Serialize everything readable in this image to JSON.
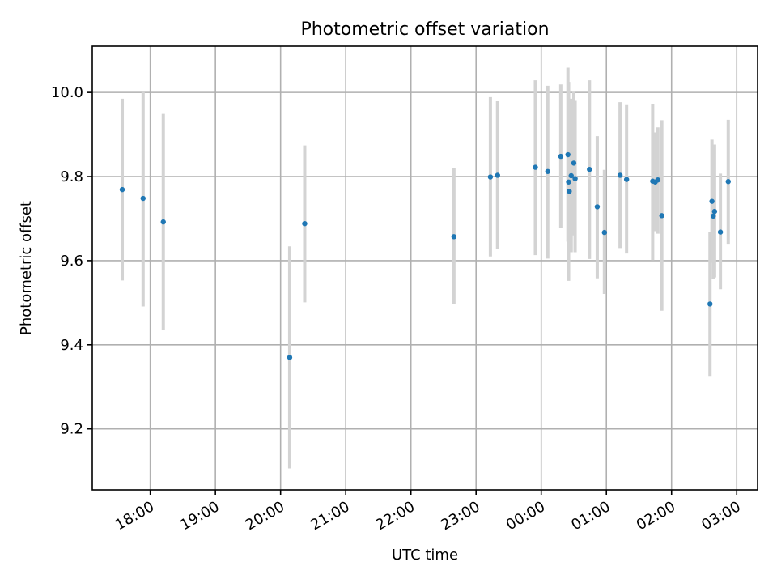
{
  "chart_data": {
    "type": "scatter",
    "title": "Photometric offset variation",
    "xlabel": "UTC time",
    "ylabel": "Photometric offset",
    "grid": true,
    "x_unit": "hours since 17:00 UTC",
    "xlim": [
      0.11,
      10.32
    ],
    "ylim": [
      9.055,
      10.11
    ],
    "x_ticks": [
      {
        "value": 1,
        "label": "18:00"
      },
      {
        "value": 2,
        "label": "19:00"
      },
      {
        "value": 3,
        "label": "20:00"
      },
      {
        "value": 4,
        "label": "21:00"
      },
      {
        "value": 5,
        "label": "22:00"
      },
      {
        "value": 6,
        "label": "23:00"
      },
      {
        "value": 7,
        "label": "00:00"
      },
      {
        "value": 8,
        "label": "01:00"
      },
      {
        "value": 9,
        "label": "02:00"
      },
      {
        "value": 10,
        "label": "03:00"
      }
    ],
    "y_ticks": [
      {
        "value": 9.2,
        "label": "9.2"
      },
      {
        "value": 9.4,
        "label": "9.4"
      },
      {
        "value": 9.6,
        "label": "9.6"
      },
      {
        "value": 9.8,
        "label": "9.8"
      },
      {
        "value": 10.0,
        "label": "10.0"
      }
    ],
    "series": [
      {
        "name": "photometric offset",
        "marker_color": "#1f77b4",
        "errorbar_color": "#d3d3d3",
        "points": [
          {
            "x": 0.57,
            "y": 9.769,
            "lo": 9.553,
            "hi": 9.985
          },
          {
            "x": 0.89,
            "y": 9.748,
            "lo": 9.491,
            "hi": 10.004
          },
          {
            "x": 1.2,
            "y": 9.692,
            "lo": 9.436,
            "hi": 9.949
          },
          {
            "x": 3.14,
            "y": 9.37,
            "lo": 9.106,
            "hi": 9.634
          },
          {
            "x": 3.37,
            "y": 9.688,
            "lo": 9.501,
            "hi": 9.874
          },
          {
            "x": 5.66,
            "y": 9.657,
            "lo": 9.497,
            "hi": 9.82
          },
          {
            "x": 6.22,
            "y": 9.799,
            "lo": 9.61,
            "hi": 9.989
          },
          {
            "x": 6.33,
            "y": 9.803,
            "lo": 9.628,
            "hi": 9.979
          },
          {
            "x": 6.91,
            "y": 9.822,
            "lo": 9.613,
            "hi": 10.029
          },
          {
            "x": 7.1,
            "y": 9.812,
            "lo": 9.605,
            "hi": 10.016
          },
          {
            "x": 7.3,
            "y": 9.848,
            "lo": 9.678,
            "hi": 10.019
          },
          {
            "x": 7.41,
            "y": 9.852,
            "lo": 9.645,
            "hi": 10.059
          },
          {
            "x": 7.42,
            "y": 9.787,
            "lo": 9.552,
            "hi": 10.025
          },
          {
            "x": 7.43,
            "y": 9.765,
            "lo": 9.65,
            "hi": 9.88
          },
          {
            "x": 7.46,
            "y": 9.802,
            "lo": 9.62,
            "hi": 9.985
          },
          {
            "x": 7.5,
            "y": 9.832,
            "lo": 9.66,
            "hi": 10.001
          },
          {
            "x": 7.52,
            "y": 9.795,
            "lo": 9.62,
            "hi": 9.98
          },
          {
            "x": 7.74,
            "y": 9.817,
            "lo": 9.604,
            "hi": 10.029
          },
          {
            "x": 7.86,
            "y": 9.728,
            "lo": 9.558,
            "hi": 9.896
          },
          {
            "x": 7.97,
            "y": 9.667,
            "lo": 9.521,
            "hi": 9.816
          },
          {
            "x": 8.21,
            "y": 9.803,
            "lo": 9.63,
            "hi": 9.977
          },
          {
            "x": 8.31,
            "y": 9.793,
            "lo": 9.617,
            "hi": 9.97
          },
          {
            "x": 8.71,
            "y": 9.789,
            "lo": 9.601,
            "hi": 9.972
          },
          {
            "x": 8.75,
            "y": 9.787,
            "lo": 9.67,
            "hi": 9.905
          },
          {
            "x": 8.79,
            "y": 9.792,
            "lo": 9.664,
            "hi": 9.917
          },
          {
            "x": 8.85,
            "y": 9.707,
            "lo": 9.481,
            "hi": 9.934
          },
          {
            "x": 9.59,
            "y": 9.497,
            "lo": 9.326,
            "hi": 9.669
          },
          {
            "x": 9.62,
            "y": 9.741,
            "lo": 9.595,
            "hi": 9.888
          },
          {
            "x": 9.64,
            "y": 9.706,
            "lo": 9.556,
            "hi": 9.856
          },
          {
            "x": 9.66,
            "y": 9.717,
            "lo": 9.56,
            "hi": 9.876
          },
          {
            "x": 9.75,
            "y": 9.668,
            "lo": 9.532,
            "hi": 9.807
          },
          {
            "x": 9.87,
            "y": 9.788,
            "lo": 9.64,
            "hi": 9.935
          }
        ]
      }
    ]
  }
}
